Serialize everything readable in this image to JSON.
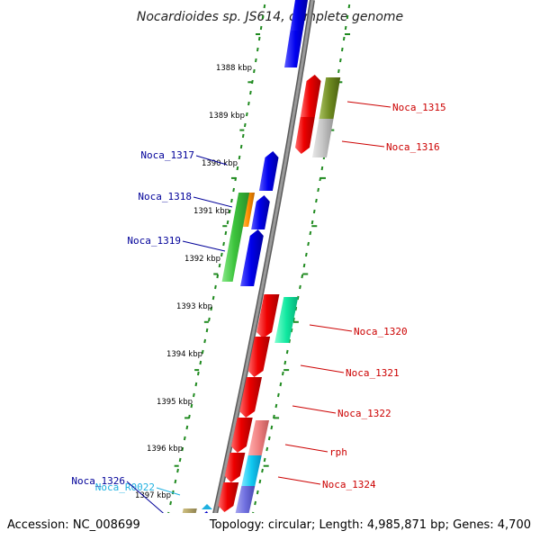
{
  "title": "Nocardioides sp. JS614, complete genome",
  "footer": {
    "accession": "Accession: NC_008699",
    "summary": "Topology: circular; Length: 4,985,871 bp; Genes: 4,700"
  },
  "colors": {
    "backbone": "#8c8c8c",
    "ticks": "#1f8a1f",
    "forward_label": "#cc0000",
    "reverse_label": "#000099",
    "rna_label": "#1fb0e0"
  },
  "kbp_labels": [
    "1388 kbp",
    "1389 kbp",
    "1390 kbp",
    "1391 kbp",
    "1392 kbp",
    "1393 kbp",
    "1394 kbp",
    "1395 kbp",
    "1396 kbp",
    "1397 kbp"
  ],
  "left_labels": [
    {
      "text": "Noca_1317",
      "color": "#000099"
    },
    {
      "text": "Noca_1318",
      "color": "#000099"
    },
    {
      "text": "Noca_1319",
      "color": "#000099"
    },
    {
      "text": "Noca_R0022",
      "color": "#1fb0e0"
    },
    {
      "text": "Noca_1326",
      "color": "#000099"
    }
  ],
  "right_labels": [
    {
      "text": "Noca_1315",
      "color": "#cc0000"
    },
    {
      "text": "Noca_1316",
      "color": "#cc0000"
    },
    {
      "text": "Noca_1320",
      "color": "#cc0000"
    },
    {
      "text": "Noca_1321",
      "color": "#cc0000"
    },
    {
      "text": "Noca_1322",
      "color": "#cc0000"
    },
    {
      "text": "rph",
      "color": "#cc0000"
    },
    {
      "text": "Noca_1324",
      "color": "#cc0000"
    }
  ]
}
